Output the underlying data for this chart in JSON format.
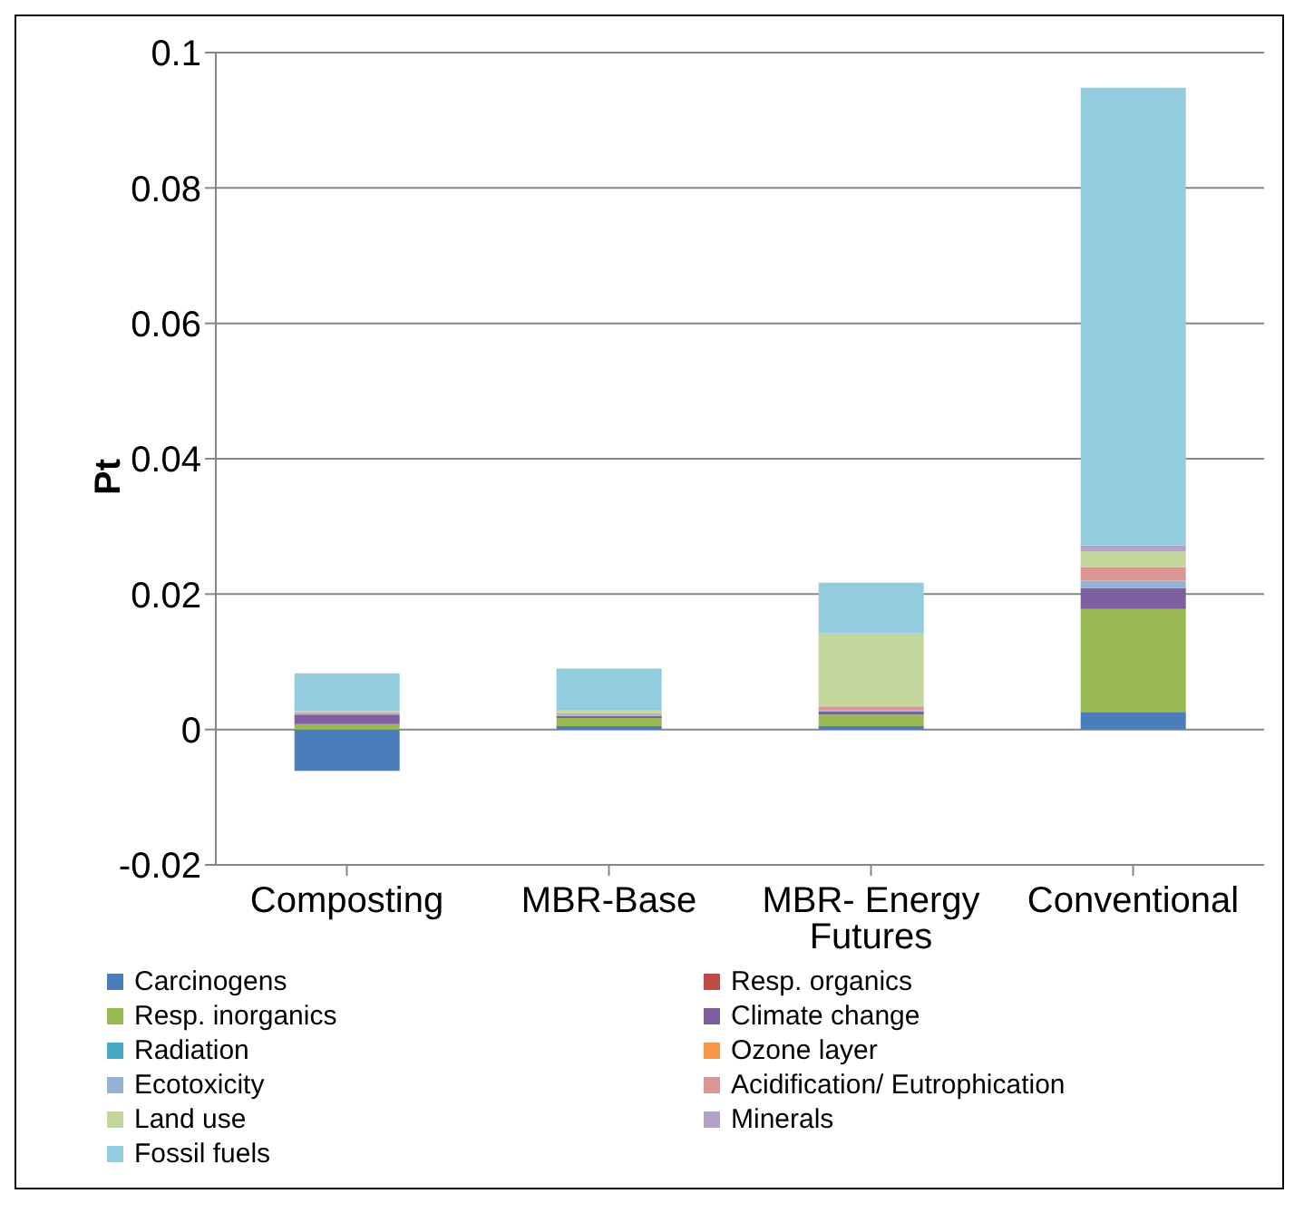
{
  "chart_data": {
    "type": "bar",
    "stacked": true,
    "ylabel": "Pt",
    "categories": [
      "Composting",
      "MBR-Base",
      "MBR- Energy Futures",
      "Conventional"
    ],
    "ylim": [
      -0.02,
      0.1
    ],
    "yticks": [
      -0.02,
      0,
      0.02,
      0.04,
      0.06,
      0.08,
      0.1
    ],
    "grid": "y",
    "legend": "bottom",
    "series": [
      {
        "name": "Carcinogens",
        "color": "#4a7ebb",
        "values": [
          -0.0061,
          0.0005,
          0.0005,
          0.0026
        ]
      },
      {
        "name": "Resp. organics",
        "color": "#be4b48",
        "values": [
          0,
          0,
          0,
          0
        ]
      },
      {
        "name": "Resp. inorganics",
        "color": "#98b954",
        "values": [
          0.0008,
          0.0012,
          0.0017,
          0.0152
        ]
      },
      {
        "name": "Climate change",
        "color": "#7d60a0",
        "values": [
          0.0014,
          0.0003,
          0.0005,
          0.0031
        ]
      },
      {
        "name": "Radiation",
        "color": "#46aac5",
        "values": [
          0,
          0,
          0,
          0
        ]
      },
      {
        "name": "Ozone layer",
        "color": "#f79646",
        "values": [
          0,
          0,
          0,
          0
        ]
      },
      {
        "name": "Ecotoxicity",
        "color": "#95b3d7",
        "values": [
          0.0002,
          0.0002,
          0.0001,
          0.0011
        ]
      },
      {
        "name": "Acidification/ Eutrophication",
        "color": "#d99694",
        "values": [
          0.0001,
          0.0002,
          0.0006,
          0.002
        ]
      },
      {
        "name": "Land use",
        "color": "#c3d69b",
        "values": [
          0.0002,
          0.0005,
          0.0108,
          0.0023
        ]
      },
      {
        "name": "Minerals",
        "color": "#b3a2c7",
        "values": [
          0,
          0,
          0,
          0.0009
        ]
      },
      {
        "name": "Fossil fuels",
        "color": "#93cddd",
        "values": [
          0.0056,
          0.0061,
          0.0075,
          0.0676
        ]
      }
    ]
  }
}
